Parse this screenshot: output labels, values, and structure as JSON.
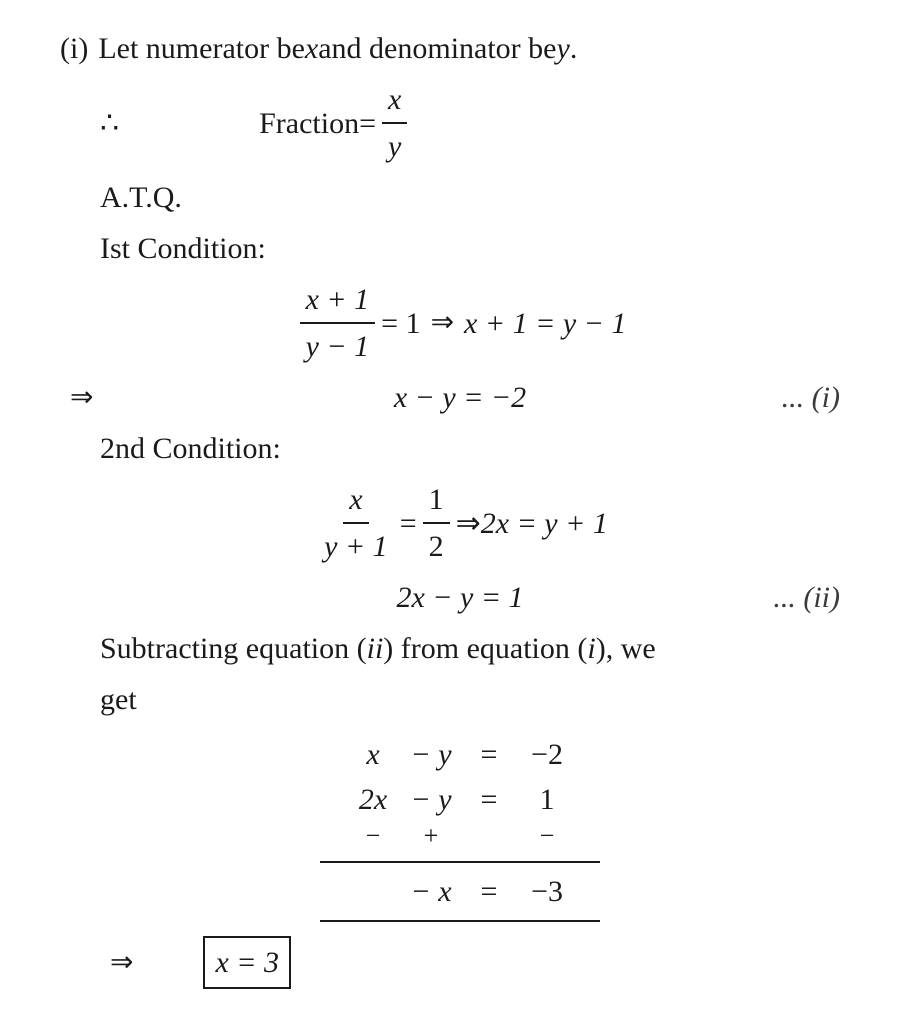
{
  "colors": {
    "text": "#1a1a1a",
    "background": "#ffffff",
    "rule": "#1a1a1a",
    "box": "#1a1a1a"
  },
  "typography": {
    "family": "Times New Roman",
    "base_size_pt": 22,
    "line_height": 1.5,
    "italic_variables": true
  },
  "item_label": "(i)",
  "line1": {
    "prefix": "Let numerator be ",
    "var1": "x",
    "mid": " and denominator be ",
    "var2": "y",
    "suffix": "."
  },
  "therefore_symbol": "∴",
  "fraction_def": {
    "label": "Fraction",
    "equals": " = ",
    "numer": "x",
    "denom": "y"
  },
  "atq": "A.T.Q.",
  "cond1_label": "Ist Condition:",
  "cond1_eq": {
    "lhs_num": "x + 1",
    "lhs_den": "y − 1",
    "eq": " = 1 ",
    "implies": "⇒",
    "rhs": " x + 1 = y − 1"
  },
  "cond1_simplified": {
    "implies": "⇒",
    "eq": "x − y = −2",
    "label": "... (i)"
  },
  "cond2_label": "2nd Condition:",
  "cond2_eq": {
    "lhs_num": "x",
    "lhs_den": "y + 1",
    "eq1": " = ",
    "rhs_num": "1",
    "rhs_den": "2",
    "implies": " ⇒ ",
    "rhs": "2x = y + 1"
  },
  "cond2_simplified": {
    "eq": "2x − y = 1",
    "label": "... (ii)"
  },
  "subtract_text_1": "Subtracting equation (",
  "subtract_text_ii": "ii",
  "subtract_text_2": ") from equation (",
  "subtract_text_i": "i",
  "subtract_text_3": "), we",
  "subtract_text_4": "get",
  "subtract_block": {
    "row1": {
      "c1": "x",
      "c2": "− y",
      "c3": "=",
      "c4": "−2"
    },
    "row2": {
      "c1": "2x",
      "c2": "− y",
      "c3": "=",
      "c4": "1"
    },
    "signs": {
      "s1": "−",
      "s2": "+",
      "s3": "",
      "s4": "−"
    },
    "result": {
      "c1": "",
      "c2": "− x",
      "c3": "=",
      "c4": "−3"
    }
  },
  "final": {
    "implies": "⇒",
    "boxed": "x = 3"
  }
}
